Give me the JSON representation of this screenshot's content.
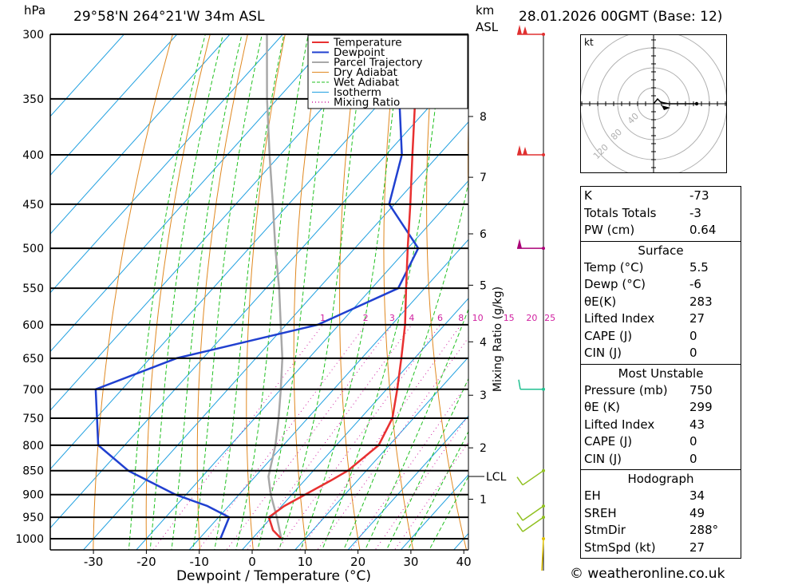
{
  "header": {
    "hpa_label": "hPa",
    "location": "29°58'N  264°21'W  34m  ASL",
    "km_label": "km",
    "asl_label": "ASL",
    "datetime": "28.01.2026  00GMT  (Base: 12)"
  },
  "chart_data": {
    "type": "skew-t",
    "x_label": "Dewpoint / Temperature (°C)",
    "y_label": "hPa",
    "mixing_ratio_axis_label": "Mixing Ratio (g/kg)",
    "pressure_levels": [
      300,
      350,
      400,
      450,
      500,
      550,
      600,
      650,
      700,
      750,
      800,
      850,
      900,
      950,
      1000
    ],
    "temp_ticks": [
      -30,
      -20,
      -10,
      0,
      10,
      20,
      30,
      40
    ],
    "km_ticks": [
      {
        "label": "8",
        "p": 365
      },
      {
        "label": "7",
        "p": 422
      },
      {
        "label": "6",
        "p": 483
      },
      {
        "label": "5",
        "p": 546
      },
      {
        "label": "4",
        "p": 625
      },
      {
        "label": "3",
        "p": 710
      },
      {
        "label": "2",
        "p": 805
      },
      {
        "label": "1",
        "p": 910
      }
    ],
    "lcl": {
      "label": "LCL",
      "p": 862
    },
    "mixing_ratio_labels": [
      "1",
      "2",
      "3",
      "4",
      "6",
      "8",
      "10",
      "15",
      "20",
      "25"
    ],
    "legend": [
      "Temperature",
      "Dewpoint",
      "Parcel Trajectory",
      "Dry Adiabat",
      "Wet Adiabat",
      "Isotherm",
      "Mixing Ratio"
    ],
    "temperature": [
      {
        "p": 1000,
        "t": 5.5
      },
      {
        "p": 980,
        "t": 2.5
      },
      {
        "p": 950,
        "t": -0.5
      },
      {
        "p": 925,
        "t": 0.5
      },
      {
        "p": 900,
        "t": 2.5
      },
      {
        "p": 870,
        "t": 5.0
      },
      {
        "p": 850,
        "t": 6.5
      },
      {
        "p": 800,
        "t": 8.0
      },
      {
        "p": 750,
        "t": 6.0
      },
      {
        "p": 700,
        "t": 2.0
      },
      {
        "p": 650,
        "t": -2.5
      },
      {
        "p": 600,
        "t": -7.5
      },
      {
        "p": 550,
        "t": -13.5
      },
      {
        "p": 500,
        "t": -20.0
      },
      {
        "p": 450,
        "t": -27.0
      },
      {
        "p": 400,
        "t": -35.0
      },
      {
        "p": 350,
        "t": -44.0
      },
      {
        "p": 300,
        "t": -52.0
      }
    ],
    "dewpoint": [
      {
        "p": 1000,
        "t": -6.0
      },
      {
        "p": 950,
        "t": -8.0
      },
      {
        "p": 925,
        "t": -14.0
      },
      {
        "p": 900,
        "t": -22.0
      },
      {
        "p": 850,
        "t": -35.0
      },
      {
        "p": 800,
        "t": -45.0
      },
      {
        "p": 700,
        "t": -55.0
      },
      {
        "p": 650,
        "t": -45.0
      },
      {
        "p": 600,
        "t": -24.0
      },
      {
        "p": 550,
        "t": -15.0
      },
      {
        "p": 500,
        "t": -18.0
      },
      {
        "p": 450,
        "t": -31.0
      },
      {
        "p": 400,
        "t": -37.0
      },
      {
        "p": 350,
        "t": -47.0
      },
      {
        "p": 300,
        "t": -55.0
      }
    ],
    "parcel": [
      {
        "p": 1000,
        "t": 5.5
      },
      {
        "p": 950,
        "t": 1.0
      },
      {
        "p": 900,
        "t": -4.0
      },
      {
        "p": 862,
        "t": -7.5
      },
      {
        "p": 800,
        "t": -11.5
      },
      {
        "p": 750,
        "t": -15.5
      },
      {
        "p": 700,
        "t": -20.0
      },
      {
        "p": 650,
        "t": -25.0
      },
      {
        "p": 600,
        "t": -31.0
      },
      {
        "p": 550,
        "t": -37.5
      },
      {
        "p": 500,
        "t": -45.0
      },
      {
        "p": 450,
        "t": -53.0
      },
      {
        "p": 400,
        "t": -62.0
      },
      {
        "p": 350,
        "t": -72.0
      },
      {
        "p": 300,
        "t": -83.0
      }
    ],
    "wind_barbs": [
      {
        "p": 300,
        "color": "#e03030"
      },
      {
        "p": 400,
        "color": "#e03030"
      },
      {
        "p": 500,
        "color": "#aa0077"
      },
      {
        "p": 700,
        "color": "#20c090"
      },
      {
        "p": 850,
        "color": "#90c020"
      },
      {
        "p": 925,
        "color": "#90c020"
      },
      {
        "p": 950,
        "color": "#90c020"
      },
      {
        "p": 1000,
        "color": "#e0c000"
      }
    ]
  },
  "hodograph": {
    "unit_label": "kt",
    "ring_labels": [
      "40",
      "80",
      "120"
    ]
  },
  "indices": {
    "basic": [
      {
        "label": "K",
        "value": "-73"
      },
      {
        "label": "Totals Totals",
        "value": "-3"
      },
      {
        "label": "PW (cm)",
        "value": "0.64"
      }
    ],
    "surface": {
      "title": "Surface",
      "rows": [
        {
          "label": "Temp (°C)",
          "value": "5.5"
        },
        {
          "label": "Dewp (°C)",
          "value": "-6"
        },
        {
          "label": "θE(K)",
          "value": "283"
        },
        {
          "label": "Lifted Index",
          "value": "27"
        },
        {
          "label": "CAPE (J)",
          "value": "0"
        },
        {
          "label": "CIN (J)",
          "value": "0"
        }
      ]
    },
    "most_unstable": {
      "title": "Most Unstable",
      "rows": [
        {
          "label": "Pressure (mb)",
          "value": "750"
        },
        {
          "label": "θE (K)",
          "value": "299"
        },
        {
          "label": "Lifted Index",
          "value": "43"
        },
        {
          "label": "CAPE (J)",
          "value": "0"
        },
        {
          "label": "CIN (J)",
          "value": "0"
        }
      ]
    },
    "hodograph": {
      "title": "Hodograph",
      "rows": [
        {
          "label": "EH",
          "value": "34"
        },
        {
          "label": "SREH",
          "value": "49"
        },
        {
          "label": "StmDir",
          "value": "288°"
        },
        {
          "label": "StmSpd (kt)",
          "value": "27"
        }
      ]
    }
  },
  "footer": {
    "copyright": "© weatheronline.co.uk"
  },
  "colors": {
    "temperature": "#e83030",
    "dewpoint": "#2040d0",
    "parcel": "#a8a8a8",
    "dry_adiabat": "#e08820",
    "wet_adiabat": "#20c020",
    "isotherm": "#20a0e0",
    "mixing_ratio": "#d020a0"
  }
}
